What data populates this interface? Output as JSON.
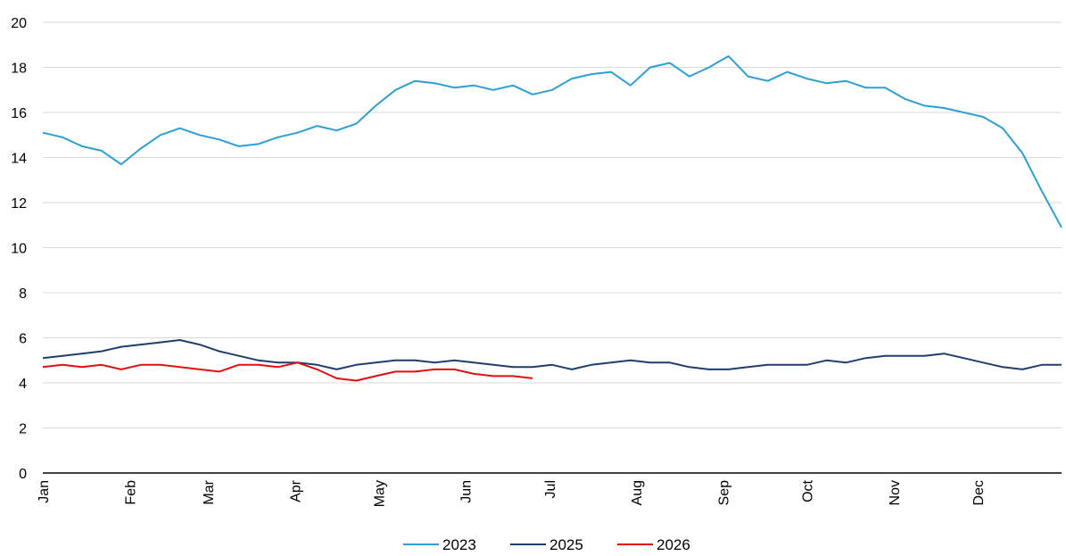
{
  "chart_data": {
    "type": "line",
    "title": "",
    "xlabel": "",
    "ylabel": "",
    "ylim": [
      0,
      20
    ],
    "yticks": [
      "0",
      "2",
      "4",
      "6",
      "8",
      "10",
      "12",
      "14",
      "16",
      "18",
      "20"
    ],
    "categories": [
      "Jan",
      "Feb",
      "Mar",
      "Apr",
      "May",
      "Jun",
      "Jul",
      "Aug",
      "Sep",
      "Oct",
      "Nov",
      "Dec"
    ],
    "grid": "horizontal",
    "legend": "bottom-center",
    "series": [
      {
        "name": "2023",
        "color": "#2e9fd4",
        "x": [
          "Jan 1",
          "Jan 8",
          "Jan 15",
          "Jan 22",
          "Jan 29",
          "Feb 5",
          "Feb 12",
          "Feb 19",
          "Feb 26",
          "Mar 5",
          "Mar 12",
          "Mar 19",
          "Mar 26",
          "Apr 2",
          "Apr 9",
          "Apr 16",
          "Apr 23",
          "Apr 30",
          "May 7",
          "May 14",
          "May 21",
          "May 28",
          "Jun 4",
          "Jun 11",
          "Jun 18",
          "Jun 25",
          "Jul 2",
          "Jul 9",
          "Jul 16",
          "Jul 23",
          "Jul 30",
          "Aug 6",
          "Aug 13",
          "Aug 20",
          "Aug 27",
          "Sep 3",
          "Sep 10",
          "Sep 17",
          "Sep 24",
          "Oct 1",
          "Oct 8",
          "Oct 15",
          "Oct 22",
          "Oct 29",
          "Nov 5",
          "Nov 12",
          "Nov 19",
          "Nov 26",
          "Dec 3",
          "Dec 10",
          "Dec 17",
          "Dec 24",
          "Dec 31"
        ],
        "values": [
          15.1,
          14.9,
          14.5,
          14.3,
          13.7,
          14.4,
          15.0,
          15.3,
          15.0,
          14.8,
          14.5,
          14.6,
          14.9,
          15.1,
          15.4,
          15.2,
          15.5,
          16.3,
          17.0,
          17.4,
          17.3,
          17.1,
          17.2,
          17.0,
          17.2,
          16.8,
          17.0,
          17.5,
          17.7,
          17.8,
          17.2,
          18.0,
          18.2,
          17.6,
          18.0,
          18.5,
          17.6,
          17.4,
          17.8,
          17.5,
          17.3,
          17.4,
          17.1,
          17.1,
          16.6,
          16.3,
          16.2,
          16.0,
          15.8,
          15.3,
          14.2,
          12.5,
          10.9
        ]
      },
      {
        "name": "2025",
        "color": "#1f3e6e",
        "x": [
          "Jan 1",
          "Jan 8",
          "Jan 15",
          "Jan 22",
          "Jan 29",
          "Feb 5",
          "Feb 12",
          "Feb 19",
          "Feb 26",
          "Mar 5",
          "Mar 12",
          "Mar 19",
          "Mar 26",
          "Apr 2",
          "Apr 9",
          "Apr 16",
          "Apr 23",
          "Apr 30",
          "May 7",
          "May 14",
          "May 21",
          "May 28",
          "Jun 4",
          "Jun 11",
          "Jun 18",
          "Jun 25",
          "Jul 2",
          "Jul 9",
          "Jul 16",
          "Jul 23",
          "Jul 30",
          "Aug 6",
          "Aug 13",
          "Aug 20",
          "Aug 27",
          "Sep 3",
          "Sep 10",
          "Sep 17",
          "Sep 24",
          "Oct 1",
          "Oct 8",
          "Oct 15",
          "Oct 22",
          "Oct 29",
          "Nov 5",
          "Nov 12",
          "Nov 19",
          "Nov 26",
          "Dec 3",
          "Dec 10",
          "Dec 17",
          "Dec 24",
          "Dec 31"
        ],
        "values": [
          5.1,
          5.2,
          5.3,
          5.4,
          5.6,
          5.7,
          5.8,
          5.9,
          5.7,
          5.4,
          5.2,
          5.0,
          4.9,
          4.9,
          4.8,
          4.6,
          4.8,
          4.9,
          5.0,
          5.0,
          4.9,
          5.0,
          4.9,
          4.8,
          4.7,
          4.7,
          4.8,
          4.6,
          4.8,
          4.9,
          5.0,
          4.9,
          4.9,
          4.7,
          4.6,
          4.6,
          4.7,
          4.8,
          4.8,
          4.8,
          5.0,
          4.9,
          5.1,
          5.2,
          5.2,
          5.2,
          5.3,
          5.1,
          4.9,
          4.7,
          4.6,
          4.8,
          4.8
        ]
      },
      {
        "name": "2026",
        "color": "#e01010",
        "x": [
          "Jan 1",
          "Jan 8",
          "Jan 15",
          "Jan 22",
          "Jan 29",
          "Feb 5",
          "Feb 12",
          "Feb 19",
          "Feb 26",
          "Mar 5",
          "Mar 12",
          "Mar 19",
          "Mar 26",
          "Apr 2",
          "Apr 9",
          "Apr 16",
          "Apr 23",
          "Apr 30",
          "May 7",
          "May 14",
          "May 21",
          "May 28",
          "Jun 4",
          "Jun 11",
          "Jun 18",
          "Jun 25"
        ],
        "values": [
          4.7,
          4.8,
          4.7,
          4.8,
          4.6,
          4.8,
          4.8,
          4.7,
          4.6,
          4.5,
          4.8,
          4.8,
          4.7,
          4.9,
          4.6,
          4.2,
          4.1,
          4.3,
          4.5,
          4.5,
          4.6,
          4.6,
          4.4,
          4.3,
          4.3,
          4.2
        ]
      }
    ]
  }
}
